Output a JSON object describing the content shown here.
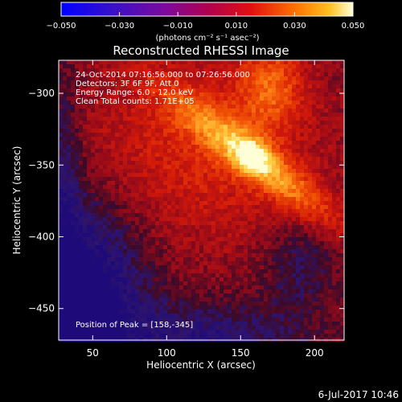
{
  "chart_data": {
    "type": "heatmap",
    "title": "Reconstructed RHESSI Image",
    "xlabel": "Heliocentric X (arcsec)",
    "ylabel": "Heliocentric Y (arcsec)",
    "xlim": [
      27,
      220
    ],
    "ylim": [
      -472,
      -277
    ],
    "x_ticks": [
      50,
      100,
      150,
      200
    ],
    "y_ticks": [
      -300,
      -350,
      -400,
      -450
    ],
    "colorbar": {
      "range": [
        -0.05,
        0.05
      ],
      "ticks": [
        -0.05,
        -0.03,
        -0.01,
        0.01,
        0.03,
        0.05
      ],
      "tick_labels": [
        "−0.050",
        "−0.030",
        "−0.010",
        "0.010",
        "0.030",
        "0.050"
      ],
      "units": "(photons cm⁻² s⁻¹ asec⁻²)"
    },
    "annotations": [
      "24-Oct-2014 07:16:56.000 to 07:26:56.000",
      "Detectors: 3F 6F 9F, Att 0",
      "Energy Range: 6.0 - 12.0 keV",
      "Clean     Total counts: 1.71E+05"
    ],
    "peak_label": "Position of Peak = [158,-345]",
    "peak_position": [
      158,
      -345
    ],
    "timestamp": "6-Jul-2017 10:46",
    "colors": {
      "low": "#2a1aa8",
      "mid": "#b80c2c",
      "high": "#ffffd8"
    }
  }
}
